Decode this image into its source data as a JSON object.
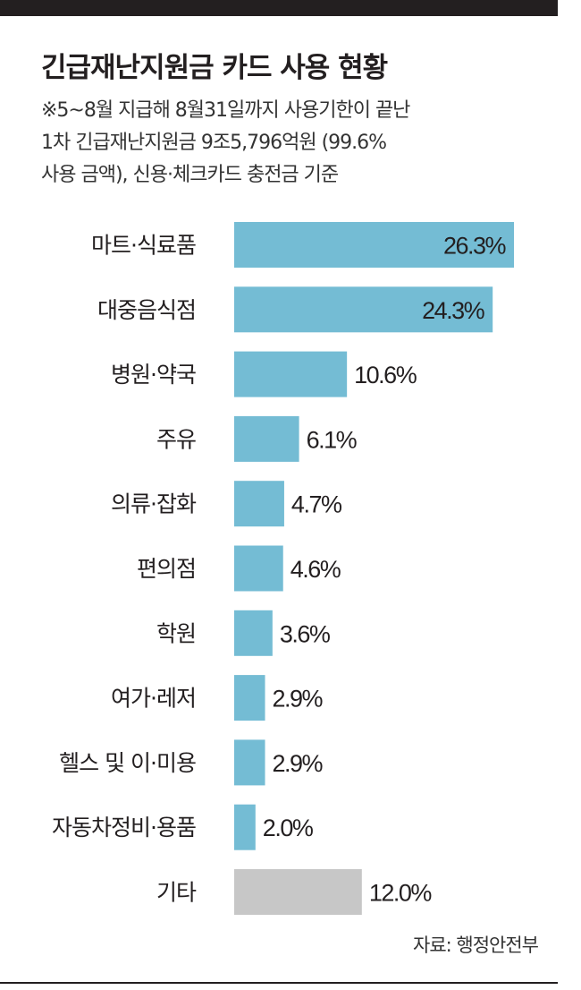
{
  "header": {
    "title": "긴급재난지원금 카드 사용 현황",
    "subtitle": "※5~8월 지급해 8월31일까지 사용기한이 끝난\n1차 긴급재난지원금 9조5,796억원 (99.6%\n사용 금액), 신용·체크카드 충전금 기준"
  },
  "chart_data": {
    "type": "bar",
    "orientation": "horizontal",
    "title": "긴급재난지원금 카드 사용 현황",
    "categories": [
      "마트·식료품",
      "대중음식점",
      "병원·약국",
      "주유",
      "의류·잡화",
      "편의점",
      "학원",
      "여가·레저",
      "헬스 및 이·미용",
      "자동차정비·용품",
      "기타"
    ],
    "values": [
      26.3,
      24.3,
      10.6,
      6.1,
      4.7,
      4.6,
      3.6,
      2.9,
      2.9,
      2.0,
      12.0
    ],
    "value_labels": [
      "26.3%",
      "24.3%",
      "10.6%",
      "6.1%",
      "4.7%",
      "4.6%",
      "3.6%",
      "2.9%",
      "2.9%",
      "2.0%",
      "12.0%"
    ],
    "unit": "%",
    "xlim": [
      0,
      26.3
    ],
    "colors": {
      "main": "#74bcd4",
      "other": "#c7c7c7"
    },
    "grid": false,
    "legend": "none"
  },
  "footer": {
    "source": "자료: 행정안전부"
  }
}
